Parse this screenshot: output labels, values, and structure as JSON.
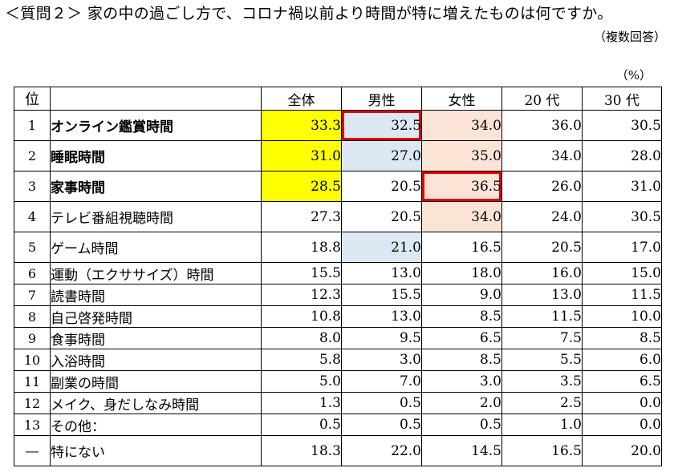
{
  "title": "＜質問２＞ 家の中の過ごし方で、コロナ禍以前より時間が特に増えたものは何ですか。",
  "subtitle": "（複数回答）",
  "unit": "（%）",
  "table": {
    "headers": [
      "位",
      "",
      "全体",
      "男性",
      "女性",
      "20 代",
      "30 代"
    ],
    "rows": [
      {
        "rank": "1",
        "item": "オンライン鑑賞時間",
        "values": [
          "33.3",
          "32.5",
          "34.0",
          "36.0",
          "30.5"
        ]
      },
      {
        "rank": "2",
        "item": "睡眠時間",
        "values": [
          "31.0",
          "27.0",
          "35.0",
          "34.0",
          "28.0"
        ]
      },
      {
        "rank": "3",
        "item": "家事時間",
        "values": [
          "28.5",
          "20.5",
          "36.5",
          "26.0",
          "31.0"
        ]
      },
      {
        "rank": "4",
        "item": "テレビ番組視聴時間",
        "values": [
          "27.3",
          "20.5",
          "34.0",
          "24.0",
          "30.5"
        ]
      },
      {
        "rank": "5",
        "item": "ゲーム時間",
        "values": [
          "18.8",
          "21.0",
          "16.5",
          "20.5",
          "17.0"
        ]
      },
      {
        "rank": "6",
        "item": "運動（エクササイズ）時間",
        "values": [
          "15.5",
          "13.0",
          "18.0",
          "16.0",
          "15.0"
        ]
      },
      {
        "rank": "7",
        "item": "読書時間",
        "values": [
          "12.3",
          "15.5",
          "9.0",
          "13.0",
          "11.5"
        ]
      },
      {
        "rank": "8",
        "item": "自己啓発時間",
        "values": [
          "10.8",
          "13.0",
          "8.5",
          "11.5",
          "10.0"
        ]
      },
      {
        "rank": "9",
        "item": "食事時間",
        "values": [
          "8.0",
          "9.5",
          "6.5",
          "7.5",
          "8.5"
        ]
      },
      {
        "rank": "10",
        "item": "入浴時間",
        "values": [
          "5.8",
          "3.0",
          "8.5",
          "5.5",
          "6.0"
        ]
      },
      {
        "rank": "11",
        "item": "副業の時間",
        "values": [
          "5.0",
          "7.0",
          "3.0",
          "3.5",
          "6.5"
        ]
      },
      {
        "rank": "12",
        "item": "メイク、身だしなみ時間",
        "values": [
          "1.3",
          "0.5",
          "2.0",
          "2.5",
          "0.0"
        ]
      },
      {
        "rank": "13",
        "item": "その他：",
        "values": [
          "0.5",
          "0.5",
          "0.5",
          "1.0",
          "0.0"
        ]
      },
      {
        "rank": "―",
        "item": "特にない",
        "values": [
          "18.3",
          "22.0",
          "14.5",
          "16.5",
          "20.0"
        ]
      }
    ]
  },
  "colors": {
    "highlight_total": "#ffff00",
    "highlight_male": "#dce9f5",
    "highlight_female": "#fbe3d6",
    "box_border": "#e00000"
  }
}
